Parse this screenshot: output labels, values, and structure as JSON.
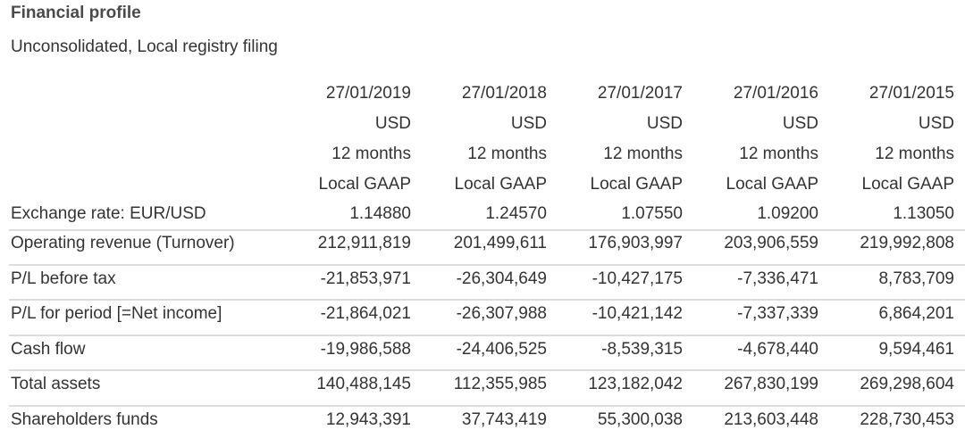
{
  "title": "Financial profile",
  "subtitle": "Unconsolidated, Local registry filing",
  "columns": [
    {
      "date": "27/01/2019",
      "currency": "USD",
      "period": "12 months",
      "standard": "Local GAAP"
    },
    {
      "date": "27/01/2018",
      "currency": "USD",
      "period": "12 months",
      "standard": "Local GAAP"
    },
    {
      "date": "27/01/2017",
      "currency": "USD",
      "period": "12 months",
      "standard": "Local GAAP"
    },
    {
      "date": "27/01/2016",
      "currency": "USD",
      "period": "12 months",
      "standard": "Local GAAP"
    },
    {
      "date": "27/01/2015",
      "currency": "USD",
      "period": "12 months",
      "standard": "Local GAAP"
    }
  ],
  "rows": [
    {
      "label": "Exchange rate: EUR/USD",
      "values": [
        "1.14880",
        "1.24570",
        "1.07550",
        "1.09200",
        "1.13050"
      ]
    },
    {
      "label": "Operating revenue (Turnover)",
      "values": [
        "212,911,819",
        "201,499,611",
        "176,903,997",
        "203,906,559",
        "219,992,808"
      ]
    },
    {
      "label": "P/L before tax",
      "values": [
        "-21,853,971",
        "-26,304,649",
        "-10,427,175",
        "-7,336,471",
        "8,783,709"
      ]
    },
    {
      "label": "P/L for period [=Net income]",
      "values": [
        "-21,864,021",
        "-26,307,988",
        "-10,421,142",
        "-7,337,339",
        "6,864,201"
      ]
    },
    {
      "label": "Cash flow",
      "values": [
        "-19,986,588",
        "-24,406,525",
        "-8,539,315",
        "-4,678,440",
        "9,594,461"
      ]
    },
    {
      "label": "Total assets",
      "values": [
        "140,488,145",
        "112,355,985",
        "123,182,042",
        "267,830,199",
        "269,298,604"
      ]
    },
    {
      "label": "Shareholders funds",
      "values": [
        "12,943,391",
        "37,743,419",
        "55,300,038",
        "213,603,448",
        "228,730,453"
      ]
    }
  ]
}
